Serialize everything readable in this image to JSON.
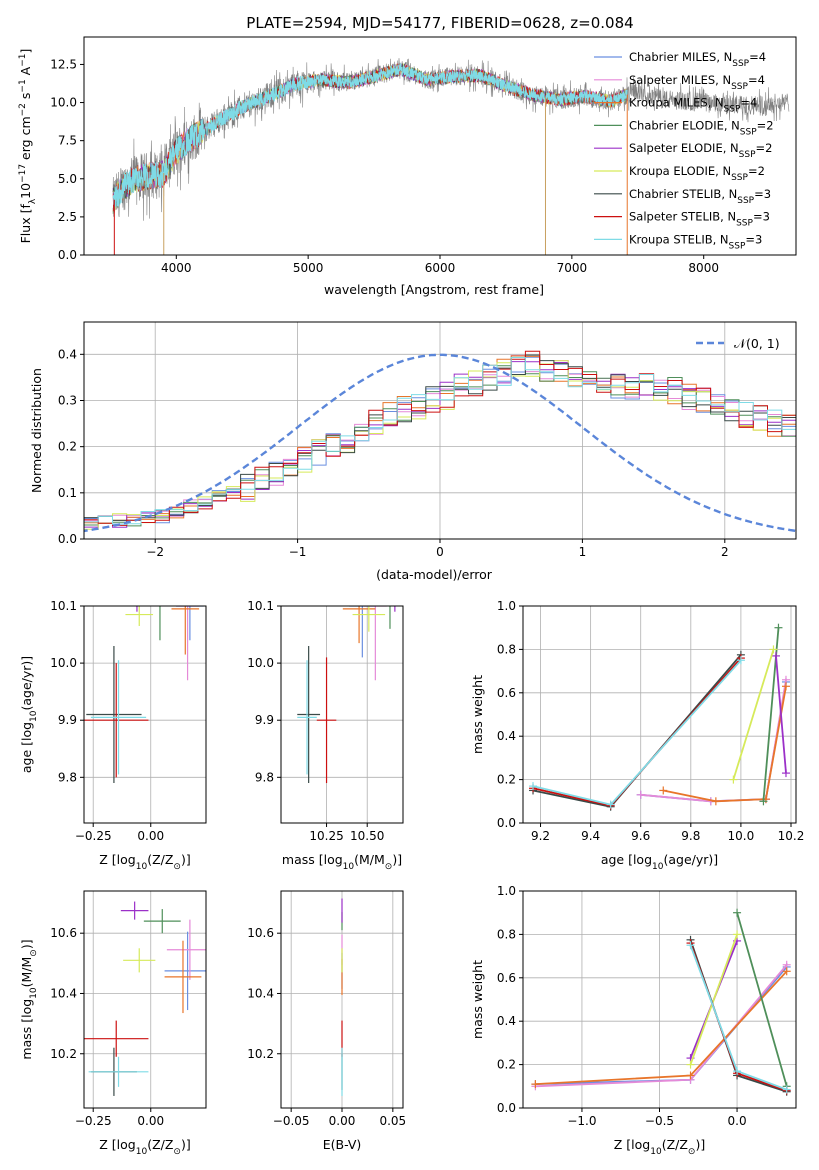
{
  "figure": {
    "title": "PLATE=2594, MJD=54177, FIBERID=0628, z=0.084"
  },
  "series_styles": [
    {
      "name": "Chabrier MILES, N$_{SSP}$=4",
      "label_main": "Chabrier MILES, N",
      "label_sub": "SSP",
      "label_end": "=4",
      "color": "#6a8fe0"
    },
    {
      "name": "Salpeter MILES, N$_{SSP}$=4",
      "label_main": "Salpeter MILES, N",
      "label_sub": "SSP",
      "label_end": "=4",
      "color": "#e58ad8"
    },
    {
      "name": "Kroupa MILES, N$_{SSP}$=4",
      "label_main": "Kroupa MILES, N",
      "label_sub": "SSP",
      "label_end": "=4",
      "color": "#e8752a"
    },
    {
      "name": "Chabrier ELODIE, N$_{SSP}$=2",
      "label_main": "Chabrier ELODIE, N",
      "label_sub": "SSP",
      "label_end": "=2",
      "color": "#4f8f5a"
    },
    {
      "name": "Salpeter ELODIE, N$_{SSP}$=2",
      "label_main": "Salpeter ELODIE, N",
      "label_sub": "SSP",
      "label_end": "=2",
      "color": "#9b30c8"
    },
    {
      "name": "Kroupa ELODIE, N$_{SSP}$=2",
      "label_main": "Kroupa ELODIE, N",
      "label_sub": "SSP",
      "label_end": "=2",
      "color": "#d6ea5a"
    },
    {
      "name": "Chabrier STELIB, N$_{SSP}$=3",
      "label_main": "Chabrier STELIB, N",
      "label_sub": "SSP",
      "label_end": "=3",
      "color": "#3a4a48"
    },
    {
      "name": "Salpeter STELIB, N$_{SSP}$=3",
      "label_main": "Salpeter STELIB, N",
      "label_sub": "SSP",
      "label_end": "=3",
      "color": "#cc1010"
    },
    {
      "name": "Kroupa STELIB, N$_{SSP}$=3",
      "label_main": "Kroupa STELIB, N",
      "label_sub": "SSP",
      "label_end": "=3",
      "color": "#7fdbe6"
    }
  ],
  "chart_data": [
    {
      "id": "spectrum",
      "type": "line",
      "title": "PLATE=2594, MJD=54177, FIBERID=0628, z=0.084",
      "xlabel": "wavelength [Angstrom, rest frame]",
      "ylabel_main": "Flux [f",
      "ylabel_sub": "λ",
      "ylabel_mid": "10",
      "ylabel_sup": "−17",
      "ylabel_end": " erg cm",
      "ylabel_sup2": "−2",
      "ylabel_end2": " s",
      "ylabel_sup3": "−1",
      "ylabel_end3": " A",
      "ylabel_sup4": "−1",
      "ylabel_close": "]",
      "xlim": [
        3300,
        8700
      ],
      "ylim": [
        0,
        14.3
      ],
      "xticks": [
        4000,
        5000,
        6000,
        7000,
        8000
      ],
      "yticks": [
        0.0,
        2.5,
        5.0,
        7.5,
        10.0,
        12.5
      ],
      "ytick_labels": [
        "0.0",
        "2.5",
        "5.0",
        "7.5",
        "10.0",
        "12.5"
      ],
      "data_color": "#808080",
      "model_color": "#7fdbe6",
      "continuum": {
        "x": [
          3520,
          3600,
          3700,
          3800,
          3900,
          4000,
          4100,
          4200,
          4300,
          4500,
          4700,
          4900,
          5100,
          5300,
          5500,
          5700,
          5900,
          6100,
          6300,
          6500,
          6700,
          6900,
          7100,
          7300,
          7500,
          7700,
          7900,
          8100,
          8300,
          8500,
          8650
        ],
        "y": [
          3.5,
          4.5,
          5.0,
          5.2,
          5.3,
          6.8,
          7.6,
          8.1,
          8.7,
          9.7,
          10.4,
          11.2,
          11.5,
          11.3,
          11.7,
          12.2,
          11.5,
          11.7,
          11.8,
          11.1,
          10.5,
          10.2,
          10.4,
          10.1,
          10.8,
          10.2,
          10.1,
          9.9,
          9.8,
          9.9,
          10.0
        ]
      },
      "legend_position": "upper-right"
    },
    {
      "id": "residuals",
      "type": "histogram",
      "xlabel": "(data-model)/error",
      "ylabel": "Normed distribution",
      "xlim": [
        -2.5,
        2.5
      ],
      "ylim": [
        0,
        0.47
      ],
      "xticks": [
        -2,
        -1,
        0,
        1,
        2
      ],
      "xtick_labels": [
        "−2",
        "−1",
        "0",
        "1",
        "2"
      ],
      "yticks": [
        0.0,
        0.1,
        0.2,
        0.3,
        0.4
      ],
      "ytick_labels": [
        "0.0",
        "0.1",
        "0.2",
        "0.3",
        "0.4"
      ],
      "bin_width": 0.1,
      "bin_start": -2.5,
      "profile": [
        0.035,
        0.035,
        0.04,
        0.04,
        0.05,
        0.05,
        0.06,
        0.07,
        0.08,
        0.09,
        0.1,
        0.11,
        0.13,
        0.14,
        0.16,
        0.17,
        0.19,
        0.2,
        0.21,
        0.23,
        0.25,
        0.27,
        0.28,
        0.29,
        0.3,
        0.31,
        0.33,
        0.34,
        0.35,
        0.36,
        0.38,
        0.38,
        0.37,
        0.36,
        0.35,
        0.34,
        0.34,
        0.33,
        0.33,
        0.33,
        0.32,
        0.32,
        0.31,
        0.3,
        0.29,
        0.28,
        0.27,
        0.26,
        0.25,
        0.24,
        0.23,
        0.22,
        0.21,
        0.2,
        0.19,
        0.18,
        0.17,
        0.16,
        0.15,
        0.14,
        0.13,
        0.12,
        0.11,
        0.1,
        0.09,
        0.08,
        0.07,
        0.06,
        0.055,
        0.05,
        0.045,
        0.04,
        0.035,
        0.03,
        0.03,
        0.03,
        0.025,
        0.025,
        0.02,
        0.02
      ],
      "gaussian_label": "𝒩(0, 1)",
      "gaussian_color": "#5b86d9",
      "legend_position": "upper-right"
    },
    {
      "id": "age-vs-Z",
      "type": "errorbar",
      "xlabel": "Z [log10(Z/Z☉)]",
      "xlabel_main": "Z [log",
      "xlabel_sub": "10",
      "xlabel_end": "(Z/Z",
      "xlabel_sub2": "⊙",
      "xlabel_close": ")]",
      "ylabel_main": "age  [log",
      "ylabel_sub": "10",
      "ylabel_end": "(age/yr)]",
      "xlim": [
        -0.29,
        0.24
      ],
      "ylim": [
        9.72,
        10.1
      ],
      "xticks": [
        -0.25,
        0.0
      ],
      "xtick_labels": [
        "−0.25",
        "0.00"
      ],
      "yticks": [
        9.8,
        9.9,
        10.0,
        10.1
      ],
      "ytick_labels": [
        "9.8",
        "9.9",
        "10.0",
        "10.1"
      ],
      "points": [
        {
          "series": 0,
          "x": 0.17,
          "y": 10.1,
          "xerr": 0.06,
          "yerr": 0.06
        },
        {
          "series": 1,
          "x": 0.16,
          "y": 10.1,
          "xerr": 0.05,
          "yerr": 0.13
        },
        {
          "series": 2,
          "x": 0.15,
          "y": 10.095,
          "xerr": 0.06,
          "yerr": 0.08
        },
        {
          "series": 3,
          "x": 0.04,
          "y": 10.14,
          "xerr": 0.08,
          "yerr": 0.1
        },
        {
          "series": 4,
          "x": -0.06,
          "y": 10.13,
          "xerr": 0.06,
          "yerr": 0.04
        },
        {
          "series": 5,
          "x": -0.05,
          "y": 10.085,
          "xerr": 0.06,
          "yerr": 0.02
        },
        {
          "series": 6,
          "x": -0.16,
          "y": 9.91,
          "xerr": 0.12,
          "yerr": 0.12
        },
        {
          "series": 7,
          "x": -0.15,
          "y": 9.9,
          "xerr": 0.14,
          "yerr": 0.1
        },
        {
          "series": 8,
          "x": -0.14,
          "y": 9.905,
          "xerr": 0.12,
          "yerr": 0.1
        }
      ]
    },
    {
      "id": "age-vs-mass",
      "type": "errorbar",
      "xlabel_main": "mass [log",
      "xlabel_sub": "10",
      "xlabel_end": "(M/M",
      "xlabel_sub2": "⊙",
      "xlabel_close": ")]",
      "xlim": [
        9.97,
        10.72
      ],
      "ylim": [
        9.72,
        10.1
      ],
      "xticks": [
        10.25,
        10.5
      ],
      "xtick_labels": [
        "10.25",
        "10.50"
      ],
      "yticks": [
        9.8,
        9.9,
        10.0,
        10.1
      ],
      "ytick_labels": [
        "9.8",
        "9.9",
        "10.0",
        "10.1"
      ],
      "points": [
        {
          "series": 0,
          "x": 10.47,
          "y": 10.1,
          "xerr": 0.08,
          "yerr": 0.09
        },
        {
          "series": 1,
          "x": 10.55,
          "y": 10.1,
          "xerr": 0.07,
          "yerr": 0.13
        },
        {
          "series": 2,
          "x": 10.45,
          "y": 10.095,
          "xerr": 0.1,
          "yerr": 0.06
        },
        {
          "series": 3,
          "x": 10.64,
          "y": 10.14,
          "xerr": 0.05,
          "yerr": 0.08
        },
        {
          "series": 4,
          "x": 10.67,
          "y": 10.13,
          "xerr": 0.03,
          "yerr": 0.04
        },
        {
          "series": 5,
          "x": 10.51,
          "y": 10.085,
          "xerr": 0.1,
          "yerr": 0.03
        },
        {
          "series": 6,
          "x": 10.14,
          "y": 9.91,
          "xerr": 0.07,
          "yerr": 0.12
        },
        {
          "series": 7,
          "x": 10.25,
          "y": 9.9,
          "xerr": 0.06,
          "yerr": 0.11
        },
        {
          "series": 8,
          "x": 10.13,
          "y": 9.905,
          "xerr": 0.06,
          "yerr": 0.1
        }
      ]
    },
    {
      "id": "massweight-vs-age",
      "type": "line",
      "xlabel_main": "age  [log",
      "xlabel_sub": "10",
      "xlabel_end": "(age/yr)]",
      "ylabel": "mass weight",
      "xlim": [
        9.13,
        10.22
      ],
      "ylim": [
        0,
        1.0
      ],
      "xticks": [
        9.2,
        9.4,
        9.6,
        9.8,
        10.0,
        10.2
      ],
      "xtick_labels": [
        "9.2",
        "9.4",
        "9.6",
        "9.8",
        "10.0",
        "10.2"
      ],
      "yticks": [
        0.0,
        0.2,
        0.4,
        0.6,
        0.8,
        1.0
      ],
      "ytick_labels": [
        "0.0",
        "0.2",
        "0.4",
        "0.6",
        "0.8",
        "1.0"
      ],
      "series": [
        {
          "series": 0,
          "x": [
            9.6,
            9.88,
            10.1,
            10.18
          ],
          "y": [
            0.13,
            0.1,
            0.11,
            0.65
          ]
        },
        {
          "series": 1,
          "x": [
            9.6,
            9.88,
            10.1,
            10.18
          ],
          "y": [
            0.13,
            0.1,
            0.11,
            0.66
          ]
        },
        {
          "series": 2,
          "x": [
            9.69,
            9.9,
            10.1,
            10.18
          ],
          "y": [
            0.15,
            0.1,
            0.11,
            0.63
          ]
        },
        {
          "series": 3,
          "x": [
            10.09,
            10.15
          ],
          "y": [
            0.1,
            0.9
          ]
        },
        {
          "series": 4,
          "x": [
            10.14,
            10.18
          ],
          "y": [
            0.77,
            0.23
          ]
        },
        {
          "series": 5,
          "x": [
            9.97,
            10.13
          ],
          "y": [
            0.2,
            0.8
          ]
        },
        {
          "series": 6,
          "x": [
            9.17,
            9.48,
            10.0
          ],
          "y": [
            0.15,
            0.075,
            0.775
          ]
        },
        {
          "series": 7,
          "x": [
            9.17,
            9.48,
            10.0
          ],
          "y": [
            0.16,
            0.08,
            0.76
          ]
        },
        {
          "series": 8,
          "x": [
            9.17,
            9.48,
            10.0
          ],
          "y": [
            0.17,
            0.085,
            0.75
          ]
        }
      ]
    },
    {
      "id": "mass-vs-Z",
      "type": "errorbar",
      "xlabel_main": "Z [log",
      "xlabel_sub": "10",
      "xlabel_end": "(Z/Z",
      "xlabel_sub2": "⊙",
      "xlabel_close": ")]",
      "ylabel_main": "mass [log",
      "ylabel_sub": "10",
      "ylabel_end": "(M/M",
      "ylabel_sub2": "⊙",
      "ylabel_close": ")]",
      "xlim": [
        -0.29,
        0.24
      ],
      "ylim": [
        10.02,
        10.74
      ],
      "xticks": [
        -0.25,
        0.0
      ],
      "xtick_labels": [
        "−0.25",
        "0.00"
      ],
      "yticks": [
        10.2,
        10.4,
        10.6
      ],
      "ytick_labels": [
        "10.2",
        "10.4",
        "10.6"
      ],
      "points": [
        {
          "series": 0,
          "x": 0.16,
          "y": 10.475,
          "xerr": 0.1,
          "yerr": 0.13
        },
        {
          "series": 1,
          "x": 0.17,
          "y": 10.545,
          "xerr": 0.1,
          "yerr": 0.1
        },
        {
          "series": 2,
          "x": 0.14,
          "y": 10.455,
          "xerr": 0.08,
          "yerr": 0.12
        },
        {
          "series": 3,
          "x": 0.05,
          "y": 10.64,
          "xerr": 0.08,
          "yerr": 0.04
        },
        {
          "series": 4,
          "x": -0.07,
          "y": 10.675,
          "xerr": 0.06,
          "yerr": 0.03
        },
        {
          "series": 5,
          "x": -0.05,
          "y": 10.51,
          "xerr": 0.07,
          "yerr": 0.04
        },
        {
          "series": 6,
          "x": -0.16,
          "y": 10.14,
          "xerr": 0.1,
          "yerr": 0.08
        },
        {
          "series": 7,
          "x": -0.15,
          "y": 10.25,
          "xerr": 0.14,
          "yerr": 0.06
        },
        {
          "series": 8,
          "x": -0.14,
          "y": 10.14,
          "xerr": 0.13,
          "yerr": 0.05
        }
      ]
    },
    {
      "id": "mass-vs-EBV",
      "type": "errorbar",
      "xlabel": "E(B-V)",
      "xlim": [
        -0.06,
        0.06
      ],
      "ylim": [
        10.02,
        10.74
      ],
      "xticks": [
        -0.05,
        0.0,
        0.05
      ],
      "xtick_labels": [
        "−0.05",
        "0.00",
        "0.05"
      ],
      "yticks": [
        10.2,
        10.4,
        10.6
      ],
      "ytick_labels": [
        "10.2",
        "10.4",
        "10.6"
      ],
      "points": [
        {
          "series": 0,
          "x": 0.0,
          "y": 10.475,
          "xerr": 0,
          "yerr": 0.06
        },
        {
          "series": 1,
          "x": 0.0,
          "y": 10.545,
          "xerr": 0,
          "yerr": 0.05
        },
        {
          "series": 2,
          "x": 0.0,
          "y": 10.455,
          "xerr": 0,
          "yerr": 0.06
        },
        {
          "series": 3,
          "x": 0.0,
          "y": 10.64,
          "xerr": 0,
          "yerr": 0.03
        },
        {
          "series": 4,
          "x": 0.0,
          "y": 10.675,
          "xerr": 0,
          "yerr": 0.04
        },
        {
          "series": 5,
          "x": 0.0,
          "y": 10.51,
          "xerr": 0,
          "yerr": 0.04
        },
        {
          "series": 6,
          "x": 0.0,
          "y": 10.14,
          "xerr": 0,
          "yerr": 0.06
        },
        {
          "series": 7,
          "x": 0.0,
          "y": 10.25,
          "xerr": 0,
          "yerr": 0.06
        },
        {
          "series": 8,
          "x": 0.0,
          "y": 10.14,
          "xerr": 0,
          "yerr": 0.08
        }
      ]
    },
    {
      "id": "massweight-vs-Z",
      "type": "line",
      "xlabel_main": "Z [log",
      "xlabel_sub": "10",
      "xlabel_end": "(Z/Z",
      "xlabel_sub2": "⊙",
      "xlabel_close": ")]",
      "ylabel": "mass weight",
      "xlim": [
        -1.38,
        0.38
      ],
      "ylim": [
        0,
        1.0
      ],
      "xticks": [
        -1.0,
        -0.5,
        0.0
      ],
      "xtick_labels": [
        "−1.0",
        "−0.5",
        "0.0"
      ],
      "yticks": [
        0.0,
        0.2,
        0.4,
        0.6,
        0.8,
        1.0
      ],
      "ytick_labels": [
        "0.0",
        "0.2",
        "0.4",
        "0.6",
        "0.8",
        "1.0"
      ],
      "series": [
        {
          "series": 0,
          "x": [
            -1.3,
            -0.3,
            0.32
          ],
          "y": [
            0.11,
            0.13,
            0.65
          ]
        },
        {
          "series": 1,
          "x": [
            -1.3,
            -0.3,
            0.32
          ],
          "y": [
            0.1,
            0.13,
            0.66
          ]
        },
        {
          "series": 2,
          "x": [
            -1.3,
            -0.3,
            0.32
          ],
          "y": [
            0.11,
            0.15,
            0.63
          ]
        },
        {
          "series": 3,
          "x": [
            0.0,
            0.32
          ],
          "y": [
            0.9,
            0.1
          ]
        },
        {
          "series": 4,
          "x": [
            -0.3,
            0.0
          ],
          "y": [
            0.23,
            0.77
          ]
        },
        {
          "series": 5,
          "x": [
            -0.3,
            0.0
          ],
          "y": [
            0.2,
            0.8
          ]
        },
        {
          "series": 6,
          "x": [
            -0.3,
            0.0,
            0.32
          ],
          "y": [
            0.775,
            0.15,
            0.075
          ]
        },
        {
          "series": 7,
          "x": [
            -0.3,
            0.0,
            0.32
          ],
          "y": [
            0.76,
            0.16,
            0.08
          ]
        },
        {
          "series": 8,
          "x": [
            -0.3,
            0.0,
            0.32
          ],
          "y": [
            0.75,
            0.17,
            0.085
          ]
        }
      ]
    }
  ]
}
